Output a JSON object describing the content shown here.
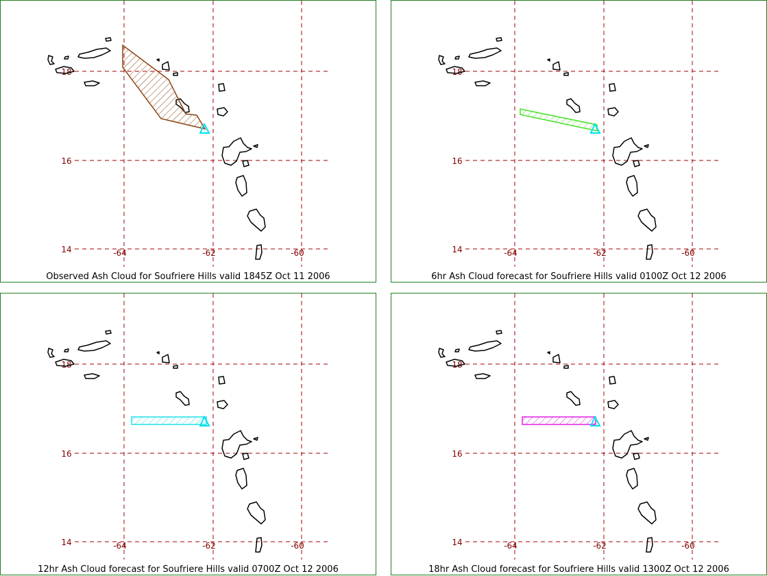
{
  "colors": {
    "frame": "#208020",
    "grid": "#a00000",
    "tick_label": "#800000",
    "coast": "#000000",
    "volcano_marker": "#00e0f0"
  },
  "panels": [
    {
      "caption": "Observed Ash Cloud for Soufriere  Hills valid 1845Z Oct 11 2006",
      "ash_color": "#8b4513",
      "lat_labels": [
        "18",
        "16",
        "14"
      ],
      "lon_labels": [
        "-64",
        "-62",
        "-60"
      ]
    },
    {
      "caption": "6hr Ash Cloud forecast for Soufriere  Hills valid 0100Z Oct 12 2006",
      "ash_color": "#40e020",
      "lat_labels": [
        "18",
        "16",
        "14"
      ],
      "lon_labels": [
        "-64",
        "-62",
        "-60"
      ]
    },
    {
      "caption": "12hr Ash Cloud forecast for Soufriere  Hills valid 0700Z Oct 12 2006",
      "ash_color": "#20e0e8",
      "lat_labels": [
        "18",
        "16",
        "14"
      ],
      "lon_labels": [
        "-64",
        "-62",
        "-60"
      ]
    },
    {
      "caption": "18hr Ash Cloud forecast for Soufriere  Hills valid 1300Z Oct 12 2006",
      "ash_color": "#e020e0",
      "lat_labels": [
        "18",
        "16",
        "14"
      ],
      "lon_labels": [
        "-64",
        "-62",
        "-60"
      ]
    }
  ]
}
